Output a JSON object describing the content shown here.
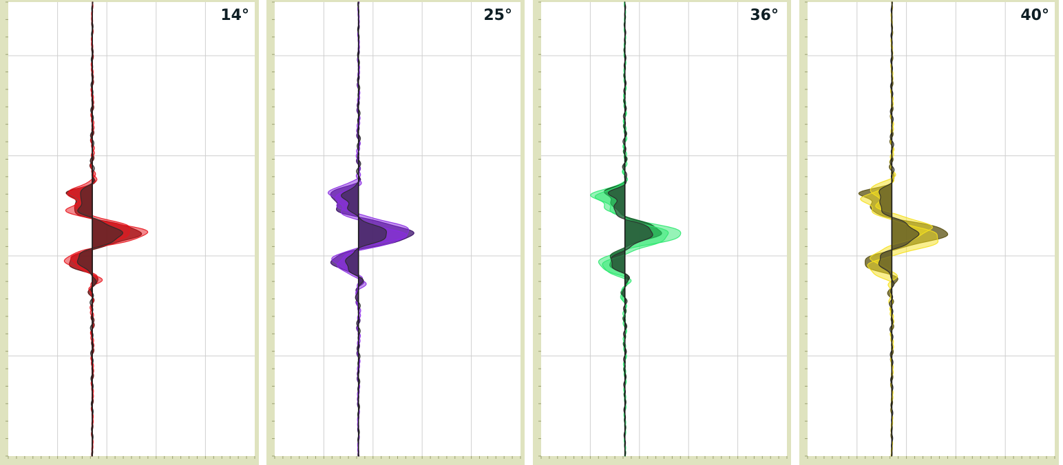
{
  "chart_data": [
    {
      "type": "area",
      "title": "14°",
      "xlabel": "",
      "ylabel": "",
      "grid": true,
      "xlim": [
        -1.5,
        2.9
      ],
      "ylim": [
        0,
        1
      ],
      "colors": {
        "fill": "#e8141c",
        "dark": "#5a0808",
        "overlay": "#2a2a2a"
      },
      "series": [
        {
          "style": "dark",
          "wavelet": {
            "amp": 0.86,
            "center": 0.51,
            "width": 0.048
          }
        },
        {
          "style": "fill",
          "wavelet": {
            "amp": 1.0,
            "center": 0.51,
            "width": 0.045
          }
        },
        {
          "style": "fill",
          "wavelet": {
            "amp": 0.72,
            "center": 0.505,
            "width": 0.05
          }
        },
        {
          "style": "overlay",
          "wavelet": {
            "amp": 0.55,
            "center": 0.51,
            "width": 0.046
          }
        }
      ]
    },
    {
      "type": "area",
      "title": "25°",
      "xlabel": "",
      "ylabel": "",
      "grid": true,
      "xlim": [
        -1.5,
        2.9
      ],
      "ylim": [
        0,
        1
      ],
      "colors": {
        "fill": "#8a2be2",
        "dark": "#3a0d6a",
        "overlay": "#2a2a2a"
      },
      "series": [
        {
          "style": "dark",
          "wavelet": {
            "amp": 1.0,
            "center": 0.51,
            "width": 0.05
          }
        },
        {
          "style": "fill",
          "wavelet": {
            "amp": 0.95,
            "center": 0.505,
            "width": 0.052
          }
        },
        {
          "style": "fill",
          "wavelet": {
            "amp": 0.82,
            "center": 0.515,
            "width": 0.048
          }
        },
        {
          "style": "overlay",
          "wavelet": {
            "amp": 0.5,
            "center": 0.51,
            "width": 0.05
          }
        }
      ]
    },
    {
      "type": "area",
      "title": "36°",
      "xlabel": "",
      "ylabel": "",
      "grid": true,
      "xlim": [
        -1.5,
        2.9
      ],
      "ylim": [
        0,
        1
      ],
      "colors": {
        "fill": "#2ee870",
        "dark": "#0e5a24",
        "overlay": "#2a2a2a"
      },
      "series": [
        {
          "style": "fill",
          "wavelet": {
            "amp": 1.0,
            "center": 0.51,
            "width": 0.052
          }
        },
        {
          "style": "dark",
          "wavelet": {
            "amp": 0.62,
            "center": 0.505,
            "width": 0.05
          }
        },
        {
          "style": "fill",
          "wavelet": {
            "amp": 0.78,
            "center": 0.515,
            "width": 0.055
          }
        },
        {
          "style": "overlay",
          "wavelet": {
            "amp": 0.5,
            "center": 0.51,
            "width": 0.048
          }
        }
      ]
    },
    {
      "type": "area",
      "title": "40°",
      "xlabel": "",
      "ylabel": "",
      "grid": true,
      "xlim": [
        -1.5,
        2.9
      ],
      "ylim": [
        0,
        1
      ],
      "colors": {
        "fill": "#f5e01e",
        "dark": "#5a5010",
        "overlay": "#2a2a2a"
      },
      "series": [
        {
          "style": "dark",
          "wavelet": {
            "amp": 1.0,
            "center": 0.51,
            "width": 0.05
          }
        },
        {
          "style": "fill",
          "wavelet": {
            "amp": 0.88,
            "center": 0.52,
            "width": 0.055
          }
        },
        {
          "style": "fill",
          "wavelet": {
            "amp": 0.7,
            "center": 0.5,
            "width": 0.05
          }
        },
        {
          "style": "overlay",
          "wavelet": {
            "amp": 0.48,
            "center": 0.51,
            "width": 0.05
          }
        }
      ]
    }
  ]
}
